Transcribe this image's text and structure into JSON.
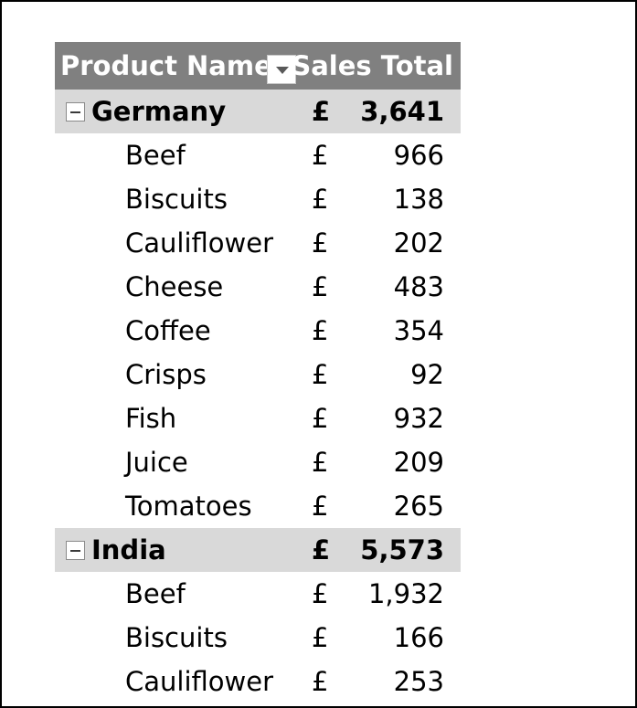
{
  "header": {
    "product_name_label": "Product Name",
    "sales_total_label": "Sales Total",
    "filter_icon": "dropdown-arrow-icon"
  },
  "colors": {
    "header_bg": "#808080",
    "header_text": "#ffffff",
    "group_row_bg": "#d9d9d9"
  },
  "groups": [
    {
      "name": "Germany",
      "currency": "£",
      "total": "3,641",
      "expand_icon": "collapse-minus-icon",
      "items": [
        {
          "name": "Beef",
          "currency": "£",
          "amount": "966"
        },
        {
          "name": "Biscuits",
          "currency": "£",
          "amount": "138"
        },
        {
          "name": "Cauliflower",
          "currency": "£",
          "amount": "202"
        },
        {
          "name": "Cheese",
          "currency": "£",
          "amount": "483"
        },
        {
          "name": "Coffee",
          "currency": "£",
          "amount": "354"
        },
        {
          "name": "Crisps",
          "currency": "£",
          "amount": "92"
        },
        {
          "name": "Fish",
          "currency": "£",
          "amount": "932"
        },
        {
          "name": "Juice",
          "currency": "£",
          "amount": "209"
        },
        {
          "name": "Tomatoes",
          "currency": "£",
          "amount": "265"
        }
      ]
    },
    {
      "name": "India",
      "currency": "£",
      "total": "5,573",
      "expand_icon": "collapse-minus-icon",
      "items": [
        {
          "name": "Beef",
          "currency": "£",
          "amount": "1,932"
        },
        {
          "name": "Biscuits",
          "currency": "£",
          "amount": "166"
        },
        {
          "name": "Cauliflower",
          "currency": "£",
          "amount": "253"
        }
      ]
    }
  ]
}
